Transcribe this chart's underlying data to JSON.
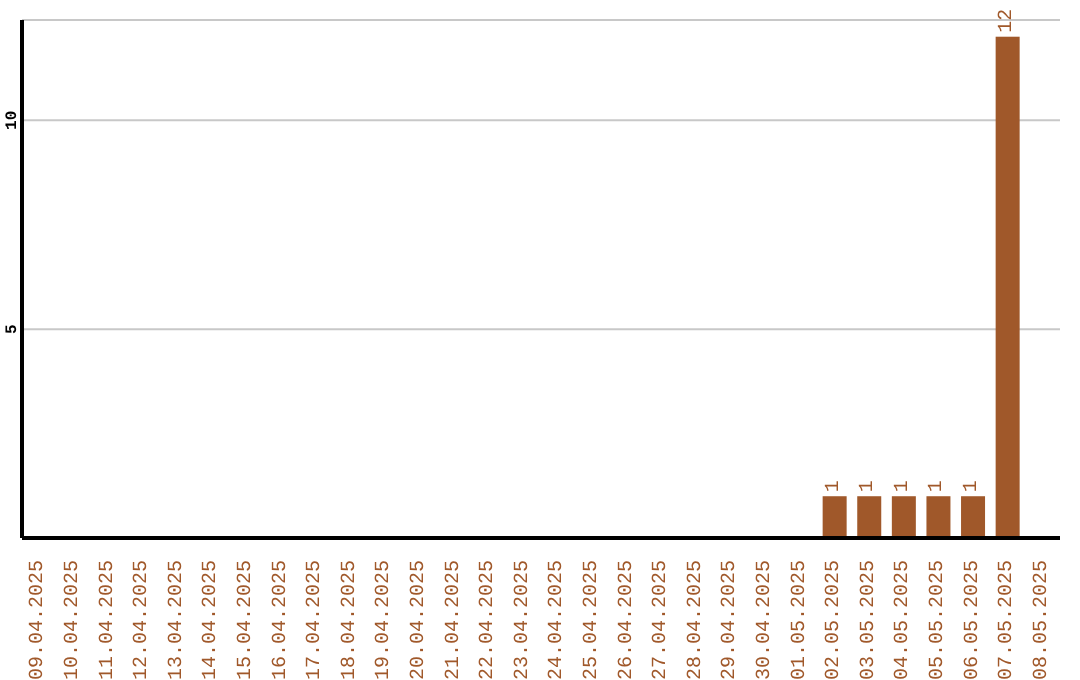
{
  "chart_data": {
    "type": "bar",
    "categories": [
      "09.04.2025",
      "10.04.2025",
      "11.04.2025",
      "12.04.2025",
      "13.04.2025",
      "14.04.2025",
      "15.04.2025",
      "16.04.2025",
      "17.04.2025",
      "18.04.2025",
      "19.04.2025",
      "20.04.2025",
      "21.04.2025",
      "22.04.2025",
      "23.04.2025",
      "24.04.2025",
      "25.04.2025",
      "26.04.2025",
      "27.04.2025",
      "28.04.2025",
      "29.04.2025",
      "30.04.2025",
      "01.05.2025",
      "02.05.2025",
      "03.05.2025",
      "04.05.2025",
      "05.05.2025",
      "06.05.2025",
      "07.05.2025",
      "08.05.2025"
    ],
    "values": [
      0,
      0,
      0,
      0,
      0,
      0,
      0,
      0,
      0,
      0,
      0,
      0,
      0,
      0,
      0,
      0,
      0,
      0,
      0,
      0,
      0,
      0,
      0,
      1,
      1,
      1,
      1,
      1,
      12,
      0
    ],
    "value_labels": [
      null,
      null,
      null,
      null,
      null,
      null,
      null,
      null,
      null,
      null,
      null,
      null,
      null,
      null,
      null,
      null,
      null,
      null,
      null,
      null,
      null,
      null,
      null,
      "1",
      "1",
      "1",
      "1",
      "1",
      "12",
      null
    ],
    "color": "#a0582a",
    "ylim": [
      0,
      12.4
    ],
    "yticks": [
      5,
      10
    ],
    "grid": "y"
  }
}
